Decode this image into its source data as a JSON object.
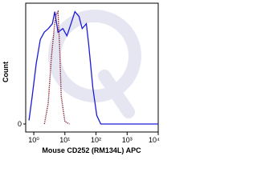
{
  "chart_data": {
    "type": "histogram-line",
    "x_label": "Mouse CD252 (RM134L) APC",
    "y_label": "Count",
    "xscale": "log",
    "xlim": [
      0.55,
      10000
    ],
    "xticks": [
      {
        "value": 1,
        "label": "10⁰"
      },
      {
        "value": 10,
        "label": "10¹"
      },
      {
        "value": 100,
        "label": "10²"
      },
      {
        "value": 1000,
        "label": "10³"
      },
      {
        "value": 10000,
        "label": "10⁴"
      }
    ],
    "ylim": [
      0,
      100
    ],
    "yticks": [
      0
    ],
    "series": [
      {
        "color": "#1a1adc",
        "style": "solid",
        "x": [
          0.7,
          0.89,
          1.2,
          1.62,
          2.18,
          2.94,
          3.96,
          4.74,
          6.0,
          8.6,
          11.6,
          15.7,
          21,
          28.5,
          36,
          49,
          58,
          79,
          106,
          143,
          10000
        ],
        "values": [
          3,
          23,
          50,
          70,
          76,
          79,
          83,
          93,
          76,
          79,
          73,
          83,
          93,
          89,
          79,
          83,
          66,
          30,
          7,
          0,
          0
        ]
      },
      {
        "color": "#7a1020",
        "style": "dotted",
        "x": [
          2.2,
          2.9,
          3.7,
          4.7,
          5.3,
          6.0,
          6.8,
          7.6,
          10,
          14
        ],
        "values": [
          0,
          17,
          56,
          83,
          91,
          93,
          63,
          23,
          2,
          0
        ]
      }
    ]
  }
}
